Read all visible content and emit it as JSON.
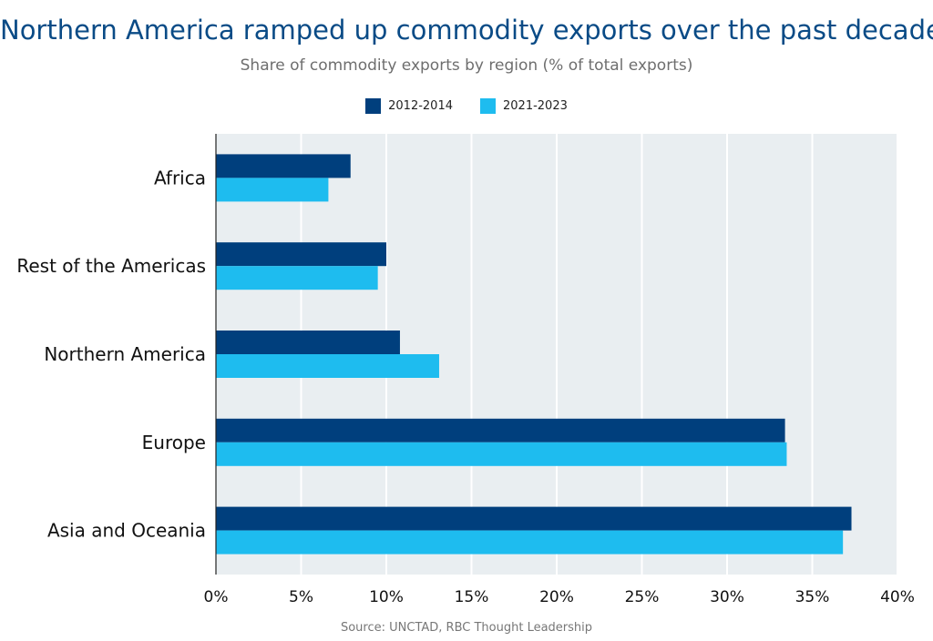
{
  "title": "Northern America ramped up commodity exports over the past decade",
  "subtitle": "Share of commodity exports by region (% of total exports)",
  "source": "Source: UNCTAD, RBC Thought Leadership",
  "colors": {
    "series_2012_2014": "#003f7d",
    "series_2021_2023": "#1ebcef",
    "plot_bg": "#e9eef1",
    "gridline": "#ffffff"
  },
  "chart_data": {
    "type": "bar",
    "orientation": "horizontal",
    "categories": [
      "Africa",
      "Rest of the Americas",
      "Northern America",
      "Europe",
      "Asia and Oceania"
    ],
    "series": [
      {
        "name": "2012-2014",
        "values": [
          7.9,
          10.0,
          10.8,
          33.4,
          37.3
        ]
      },
      {
        "name": "2021-2023",
        "values": [
          6.6,
          9.5,
          13.1,
          33.5,
          36.8
        ]
      }
    ],
    "xlim": [
      0,
      40
    ],
    "ticks": [
      0,
      5,
      10,
      15,
      20,
      25,
      30,
      35,
      40
    ],
    "tick_labels": [
      "0%",
      "5%",
      "10%",
      "15%",
      "20%",
      "25%",
      "30%",
      "35%",
      "40%"
    ],
    "grid": true,
    "legend_position": "top-center"
  }
}
